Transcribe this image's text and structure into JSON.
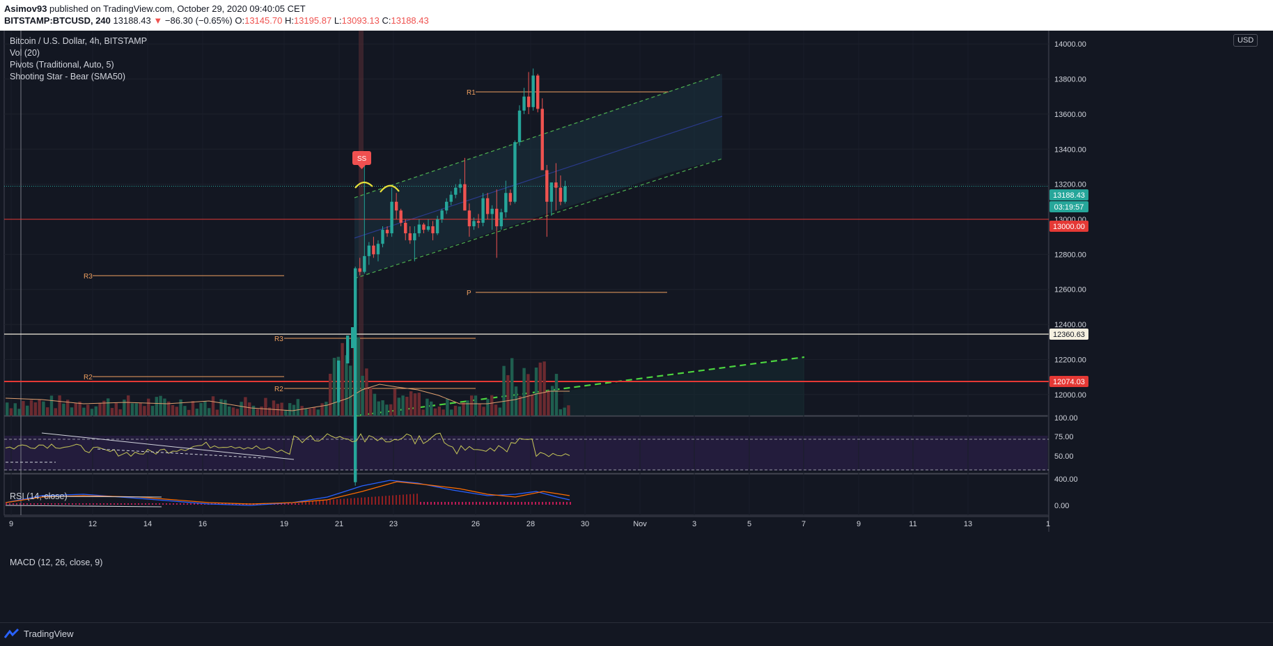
{
  "header": {
    "user": "Asimov93",
    "published": "published on TradingView.com, October 29, 2020 09:40:05 CET",
    "symbol": "BITSTAMP:BTCUSD, 240",
    "last": "13188.43",
    "arrow": "▼",
    "change": "−86.30 (−0.65%)",
    "o_label": "O:",
    "o": "13145.70",
    "h_label": "H:",
    "h": "13195.87",
    "l_label": "L:",
    "l": "13093.13",
    "c_label": "C:",
    "c": "13188.43"
  },
  "legend": {
    "title": "Bitcoin / U.S. Dollar, 4h, BITSTAMP",
    "vol": "Vol (20)",
    "pivots": "Pivots (Traditional, Auto, 5)",
    "pattern": "Shooting Star - Bear (SMA50)"
  },
  "currency_button": "USD",
  "rsi_label": "RSI (14, close)",
  "macd_label": "MACD (12, 26, close, 9)",
  "footer": {
    "brand": "TradingView"
  },
  "colors": {
    "up": "#26a69a",
    "down": "#ef5350",
    "pivot": "#f0a060",
    "channel": "#4caf50",
    "support": "#e53935",
    "rsi": "#c8c858",
    "macd": "#2962ff",
    "signal": "#ff6d00",
    "bg": "#131722"
  },
  "chart_data": {
    "type": "candlestick",
    "symbol": "BTCUSD",
    "timeframe": "4h",
    "ylim": [
      11880,
      14100
    ],
    "y_ticks": [
      "14000.00",
      "13800.00",
      "13600.00",
      "13400.00",
      "13200.00",
      "13000.00",
      "12800.00",
      "12600.00",
      "12400.00",
      "12200.00",
      "12000.00"
    ],
    "x_ticks": [
      "9",
      "12",
      "14",
      "16",
      "19",
      "21",
      "23",
      "26",
      "28",
      "30",
      "Nov",
      "3",
      "5",
      "7",
      "9",
      "11",
      "13",
      "1"
    ],
    "price_tags": [
      {
        "label": "13188.43",
        "color": "#26a69a"
      },
      {
        "label": "03:19:57",
        "color": "#26a69a"
      },
      {
        "label": "13000.00",
        "color": "#e53935"
      },
      {
        "label": "12360.63",
        "color": "#f5f0e0"
      },
      {
        "label": "12074.03",
        "color": "#e53935"
      }
    ],
    "pivot_labels": [
      "R1",
      "P",
      "R3",
      "R3",
      "R2",
      "R2"
    ],
    "pattern_marker": "SS",
    "candles": [
      [
        11500,
        12730,
        11480,
        12720
      ],
      [
        12720,
        12780,
        12680,
        12700
      ],
      [
        12700,
        13320,
        12690,
        12790
      ],
      [
        12790,
        12870,
        12740,
        12850
      ],
      [
        12850,
        12900,
        12780,
        12800
      ],
      [
        12800,
        12880,
        12760,
        12860
      ],
      [
        12860,
        12960,
        12840,
        12940
      ],
      [
        12940,
        12960,
        12900,
        12920
      ],
      [
        12920,
        13180,
        12900,
        13100
      ],
      [
        13100,
        13150,
        13000,
        13050
      ],
      [
        13050,
        13060,
        12960,
        12980
      ],
      [
        12980,
        13000,
        12880,
        12920
      ],
      [
        12920,
        12960,
        12860,
        12880
      ],
      [
        12880,
        12960,
        12760,
        12920
      ],
      [
        12920,
        13000,
        12900,
        12970
      ],
      [
        12970,
        12980,
        12920,
        12940
      ],
      [
        12940,
        13000,
        12930,
        12960
      ],
      [
        12960,
        12990,
        12880,
        12920
      ],
      [
        12920,
        13020,
        12910,
        13000
      ],
      [
        13000,
        13060,
        12980,
        13050
      ],
      [
        13050,
        13120,
        13030,
        13100
      ],
      [
        13100,
        13160,
        13080,
        13140
      ],
      [
        13140,
        13200,
        13120,
        13180
      ],
      [
        13180,
        13230,
        13150,
        13200
      ],
      [
        13200,
        13350,
        13050,
        13050
      ],
      [
        13050,
        13090,
        12900,
        12960
      ],
      [
        12960,
        13010,
        12940,
        12990
      ],
      [
        12990,
        13030,
        12950,
        12980
      ],
      [
        12980,
        13150,
        12960,
        13120
      ],
      [
        13120,
        13150,
        13000,
        13030
      ],
      [
        13030,
        13080,
        12940,
        13060
      ],
      [
        13060,
        13170,
        12780,
        12960
      ],
      [
        12960,
        13060,
        12940,
        13040
      ],
      [
        13040,
        13220,
        13010,
        13150
      ],
      [
        13150,
        13170,
        13080,
        13100
      ],
      [
        13100,
        13450,
        13090,
        13440
      ],
      [
        13440,
        13650,
        13420,
        13620
      ],
      [
        13620,
        13750,
        13600,
        13700
      ],
      [
        13700,
        13840,
        13600,
        13640
      ],
      [
        13640,
        13860,
        13620,
        13820
      ],
      [
        13820,
        13830,
        13610,
        13630
      ],
      [
        13630,
        13690,
        13280,
        13280
      ],
      [
        13280,
        13310,
        12900,
        13100
      ],
      [
        13100,
        13200,
        13020,
        13210
      ],
      [
        13210,
        13320,
        13050,
        13180
      ],
      [
        13180,
        13250,
        13080,
        13100
      ],
      [
        13100,
        13220,
        13090,
        13188
      ]
    ],
    "rsi": {
      "levels": [
        70,
        30
      ],
      "last": "50.00"
    },
    "macd": {
      "fast": 12,
      "slow": 26,
      "signal": 9
    }
  }
}
